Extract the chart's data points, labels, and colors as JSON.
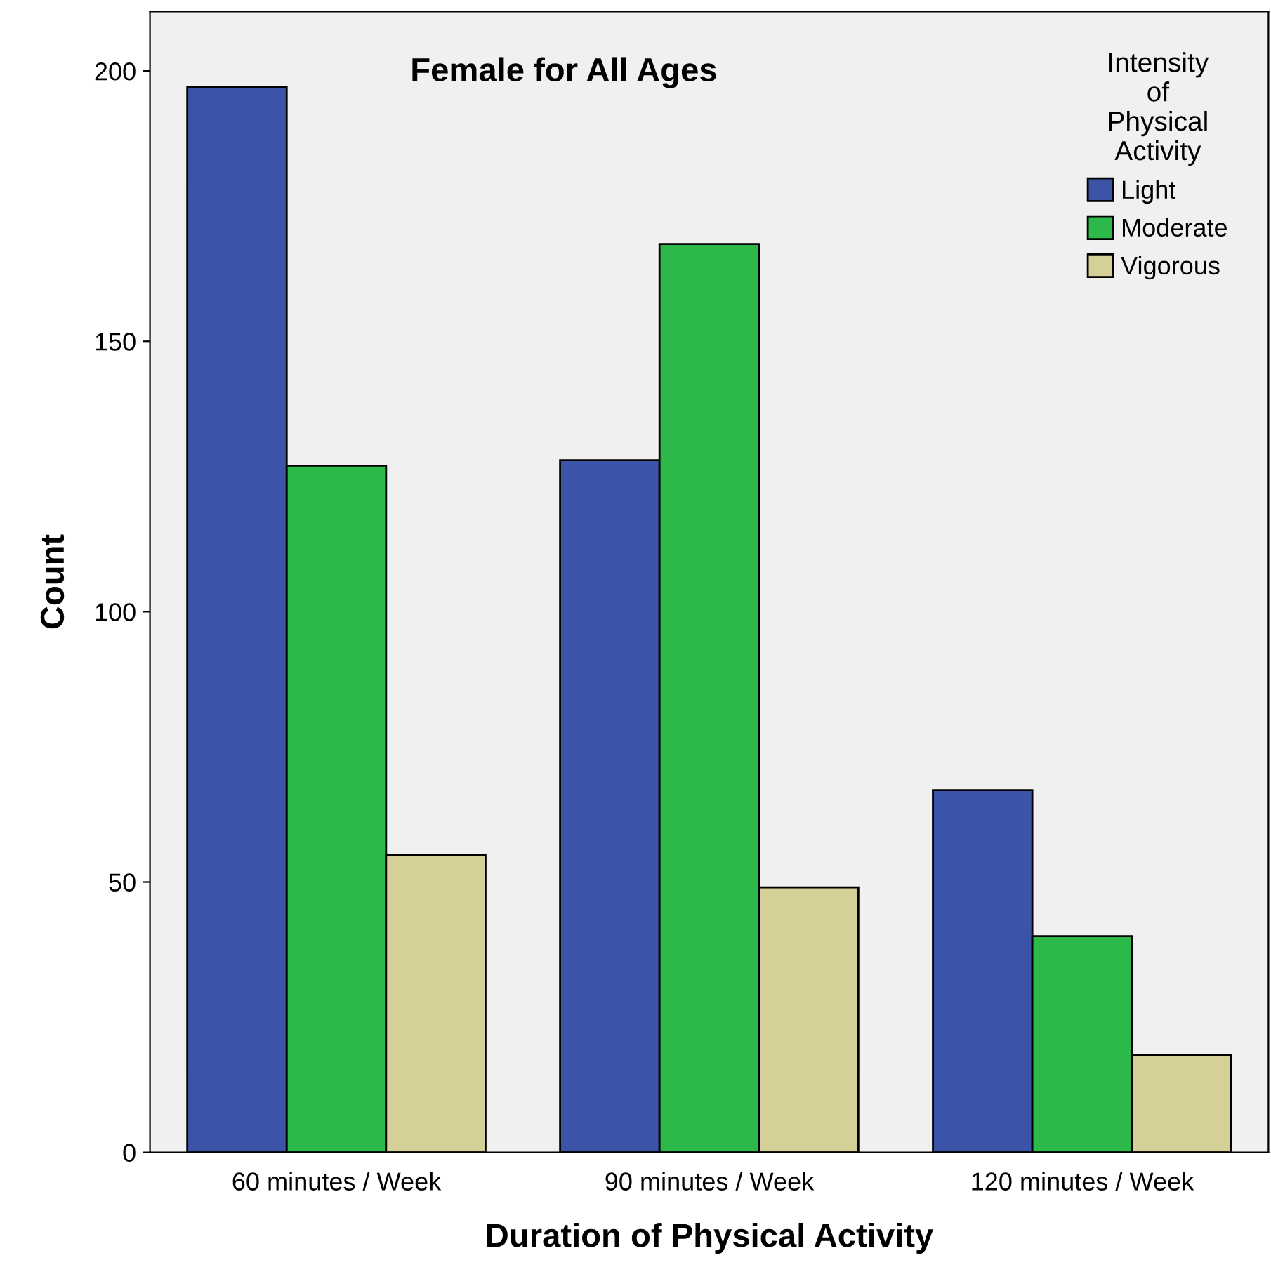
{
  "chart_data": {
    "type": "bar",
    "title": "Female for All Ages",
    "xlabel": "Duration of Physical Activity",
    "ylabel": "Count",
    "legend_title": "Intensity\nof\nPhysical\nActivity",
    "categories": [
      "60 minutes / Week",
      "90 minutes / Week",
      "120 minutes / Week"
    ],
    "series": [
      {
        "name": "Light",
        "color": "#3b54a8",
        "values": [
          197,
          128,
          67
        ]
      },
      {
        "name": "Moderate",
        "color": "#2db84a",
        "values": [
          127,
          168,
          40
        ]
      },
      {
        "name": "Vigorous",
        "color": "#d5cf98",
        "values": [
          55,
          49,
          18
        ]
      }
    ],
    "ylim": [
      0,
      211
    ],
    "yticks": [
      0,
      50,
      100,
      150,
      200
    ],
    "grid": false,
    "legend": "top right"
  }
}
